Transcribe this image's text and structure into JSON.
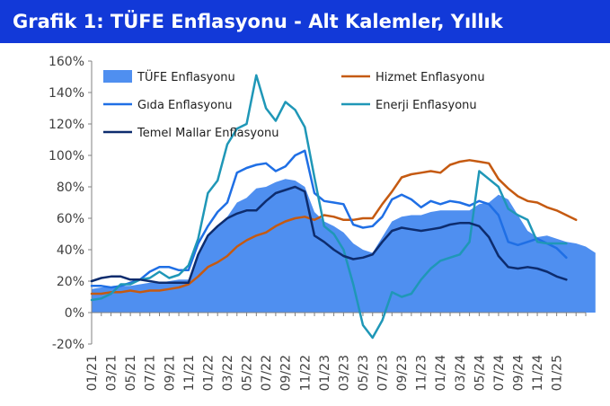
{
  "title": "Grafik 1: TÜFE Enflasyonu - Alt Kalemler, Yıllık",
  "chart_data": {
    "type": "line",
    "ylim": [
      -20,
      160
    ],
    "yticks": [
      -20,
      0,
      20,
      40,
      60,
      80,
      100,
      120,
      140,
      160
    ],
    "ytick_suffix": "%",
    "xtick_labels": [
      "01/21",
      "03/21",
      "05/21",
      "07/21",
      "09/21",
      "11/21",
      "01/22",
      "03/22",
      "05/22",
      "07/22",
      "09/22",
      "11/22",
      "01/23",
      "03/23",
      "05/23",
      "07/23",
      "09/23",
      "11/23",
      "01/24",
      "03/24",
      "05/24",
      "07/24",
      "09/24",
      "11/24",
      "01/25"
    ],
    "grid": false,
    "legend": {
      "columns": 2,
      "placement": "top"
    },
    "colors": {
      "title_bg": "#1239d8",
      "title_text": "#ffffff"
    },
    "series": [
      {
        "name": "TÜFE Enflasyonu",
        "kind": "area",
        "color": "#4f8ff0",
        "values": [
          15,
          16,
          16,
          17,
          17,
          18,
          19,
          19,
          20,
          21,
          21,
          36,
          49,
          55,
          61,
          70,
          73,
          79,
          80,
          83,
          85,
          84,
          80,
          64,
          58,
          55,
          51,
          44,
          40,
          38,
          48,
          58,
          61,
          62,
          62,
          64,
          65,
          65,
          65,
          65,
          69,
          70,
          75,
          72,
          62,
          52,
          48,
          49,
          47,
          45,
          44,
          42,
          38
        ]
      },
      {
        "name": "Hizmet Enflasyonu",
        "kind": "line",
        "color": "#c55a11",
        "values": [
          12,
          12,
          13,
          13,
          14,
          13,
          14,
          14,
          15,
          16,
          18,
          23,
          29,
          32,
          36,
          42,
          46,
          49,
          51,
          55,
          58,
          60,
          61,
          59,
          62,
          61,
          59,
          59,
          60,
          60,
          69,
          77,
          86,
          88,
          89,
          90,
          89,
          94,
          96,
          97,
          96,
          95,
          85,
          79,
          74,
          71,
          70,
          67,
          65,
          62,
          59
        ]
      },
      {
        "name": "Gıda Enflasyonu",
        "kind": "line",
        "color": "#1f6fe5",
        "values": [
          17,
          17,
          16,
          17,
          19,
          21,
          26,
          29,
          29,
          27,
          27,
          44,
          55,
          64,
          70,
          89,
          92,
          94,
          95,
          90,
          93,
          100,
          103,
          76,
          71,
          70,
          69,
          56,
          54,
          55,
          61,
          72,
          75,
          72,
          67,
          71,
          69,
          71,
          70,
          68,
          71,
          69,
          62,
          45,
          43,
          45,
          47,
          44,
          41,
          35
        ]
      },
      {
        "name": "Enerji Enflasyonu",
        "kind": "line",
        "color": "#1f97b7",
        "values": [
          8,
          9,
          12,
          18,
          18,
          21,
          22,
          26,
          22,
          24,
          30,
          47,
          76,
          84,
          107,
          117,
          120,
          151,
          130,
          122,
          134,
          129,
          118,
          86,
          55,
          50,
          40,
          18,
          -8,
          -16,
          -5,
          13,
          10,
          12,
          21,
          28,
          33,
          35,
          37,
          45,
          90,
          85,
          80,
          66,
          62,
          59,
          45,
          44,
          44,
          44
        ]
      },
      {
        "name": "Temel Mallar Enflasyonu",
        "kind": "line",
        "color": "#0d2c6e",
        "values": [
          20,
          22,
          23,
          23,
          21,
          21,
          20,
          19,
          19,
          19,
          19,
          37,
          49,
          55,
          60,
          63,
          65,
          65,
          71,
          76,
          78,
          80,
          77,
          49,
          45,
          40,
          36,
          34,
          35,
          37,
          45,
          52,
          54,
          53,
          52,
          53,
          54,
          56,
          57,
          57,
          55,
          48,
          36,
          29,
          28,
          29,
          28,
          26,
          23,
          21
        ]
      }
    ]
  }
}
